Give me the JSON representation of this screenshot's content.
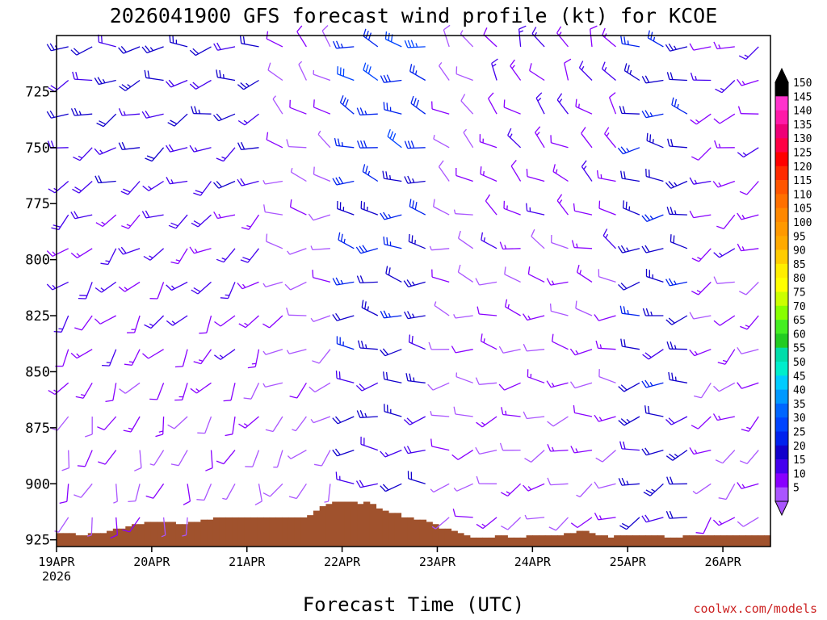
{
  "chart_data": {
    "type": "wind-barb",
    "title": "2026041900 GFS forecast wind profile (kt) for KCOE",
    "xlabel": "Forecast Time (UTC)",
    "credit": "coolwx.com/models",
    "x_ticks": [
      "19APR",
      "20APR",
      "21APR",
      "22APR",
      "23APR",
      "24APR",
      "25APR",
      "26APR"
    ],
    "x_start_year": "2026",
    "x_range_days": [
      0,
      7.5
    ],
    "y_ticks": [
      "725",
      "750",
      "775",
      "800",
      "825",
      "850",
      "875",
      "900",
      "925"
    ],
    "y_range_hpa": [
      700,
      928
    ],
    "barb_times_hours": {
      "start": 3,
      "end": 177,
      "step": 6
    },
    "barb_levels_hpa": [
      705,
      720,
      735,
      750,
      765,
      780,
      795,
      810,
      825,
      840,
      855,
      870,
      885,
      900,
      915
    ],
    "terrain_surface_pressure_hpa": [
      922,
      922,
      922,
      923,
      923,
      922,
      922,
      922,
      921,
      920,
      920,
      919,
      918,
      918,
      917,
      917,
      917,
      917,
      917,
      918,
      918,
      917,
      917,
      916,
      916,
      915,
      915,
      915,
      915,
      915,
      915,
      915,
      915,
      915,
      915,
      915,
      915,
      915,
      915,
      915,
      914,
      912,
      910,
      909,
      908,
      908,
      908,
      908,
      909,
      908,
      909,
      911,
      912,
      913,
      913,
      915,
      915,
      916,
      916,
      917,
      918,
      920,
      920,
      921,
      922,
      923,
      924,
      924,
      924,
      924,
      923,
      923,
      924,
      924,
      924,
      923,
      923,
      923,
      923,
      923,
      923,
      922,
      922,
      921,
      921,
      922,
      923,
      923,
      924,
      923,
      923,
      923,
      923,
      923,
      923,
      923,
      923,
      924,
      924,
      924,
      923,
      923,
      923,
      923,
      923,
      923,
      923,
      923,
      923,
      923,
      923,
      923,
      923,
      923
    ],
    "colorbar": {
      "labels": [
        "150",
        "145",
        "140",
        "135",
        "130",
        "125",
        "120",
        "115",
        "110",
        "105",
        "100",
        "95",
        "90",
        "85",
        "80",
        "75",
        "70",
        "65",
        "60",
        "55",
        "50",
        "45",
        "40",
        "35",
        "30",
        "25",
        "20",
        "15",
        "10",
        "5"
      ],
      "colors": [
        "#000000",
        "#ff33cc",
        "#ff1aa8",
        "#ee0077",
        "#ff0044",
        "#ff0000",
        "#ff2a00",
        "#ff5500",
        "#ff7000",
        "#ff8800",
        "#ff9900",
        "#ffaa00",
        "#ffcc00",
        "#ffee00",
        "#ffff00",
        "#ccff00",
        "#88ff00",
        "#44ee22",
        "#22cc22",
        "#00ddaa",
        "#00eecc",
        "#00ccff",
        "#0099ff",
        "#0066ff",
        "#0044ff",
        "#0022ee",
        "#1100cc",
        "#4400ee",
        "#8800ff",
        "#aa55ff"
      ]
    },
    "winds": {
      "note": "dir (deg from) and speed (kt) per time column x level; generated from the plotted pattern",
      "segments": [
        {
          "t_from": 0,
          "t_to": 54,
          "dir": 260,
          "spd": 22,
          "low_dir": 190,
          "low_spd": 8
        },
        {
          "t_from": 54,
          "t_to": 72,
          "dir": 320,
          "spd": 9,
          "low_dir": 200,
          "low_spd": 7
        },
        {
          "t_from": 72,
          "t_to": 96,
          "dir": 290,
          "spd": 30,
          "low_dir": 260,
          "low_spd": 18
        },
        {
          "t_from": 96,
          "t_to": 108,
          "dir": 320,
          "spd": 8,
          "low_dir": 250,
          "low_spd": 8
        },
        {
          "t_from": 108,
          "t_to": 144,
          "dir": 330,
          "spd": 14,
          "low_dir": 240,
          "low_spd": 10
        },
        {
          "t_from": 144,
          "t_to": 160,
          "dir": 280,
          "spd": 24,
          "low_dir": 250,
          "low_spd": 22
        },
        {
          "t_from": 160,
          "t_to": 180,
          "dir": 250,
          "spd": 14,
          "low_dir": 230,
          "low_spd": 10
        }
      ]
    }
  }
}
